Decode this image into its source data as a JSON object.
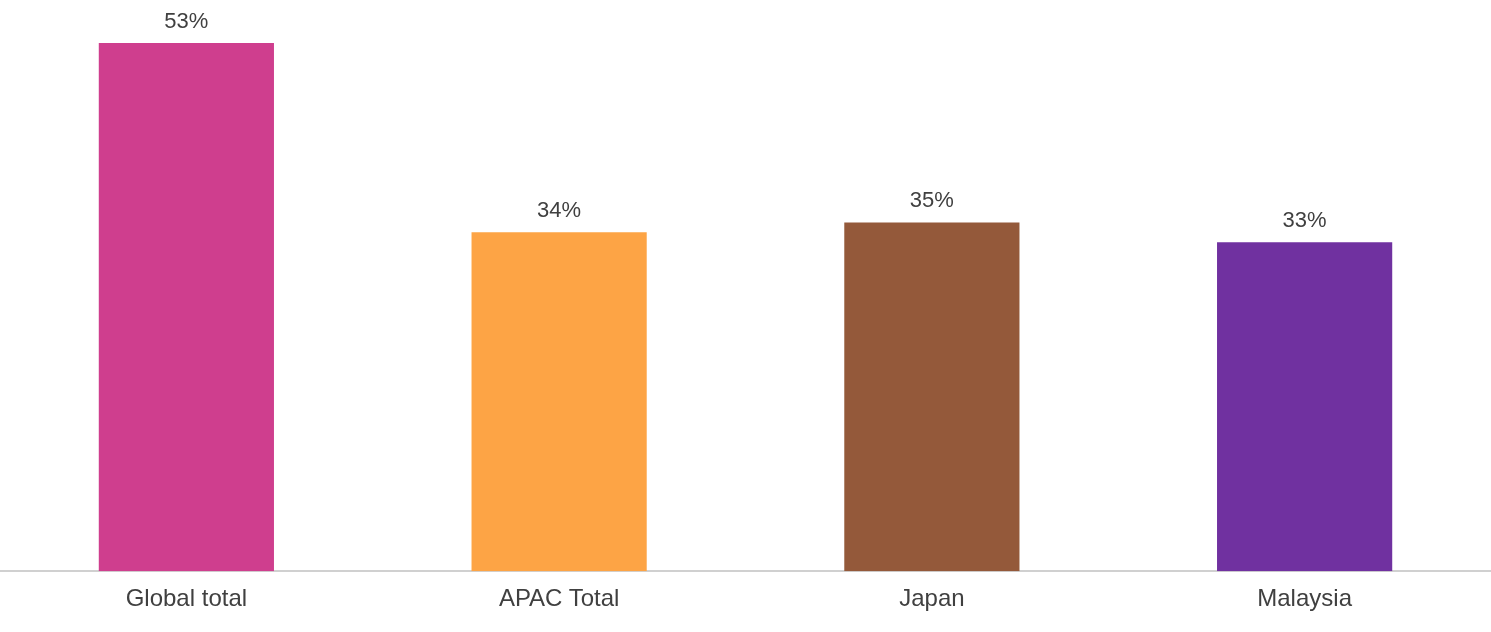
{
  "chart_data": {
    "type": "bar",
    "categories": [
      "Global total",
      "APAC Total",
      "Japan",
      "Malaysia"
    ],
    "values": [
      53,
      34,
      35,
      33
    ],
    "colors": [
      "#cf3e8e",
      "#fda445",
      "#94593a",
      "#7031a0"
    ],
    "value_labels": [
      "53%",
      "34%",
      "35%",
      "33%"
    ],
    "grid": false,
    "legend": false
  }
}
